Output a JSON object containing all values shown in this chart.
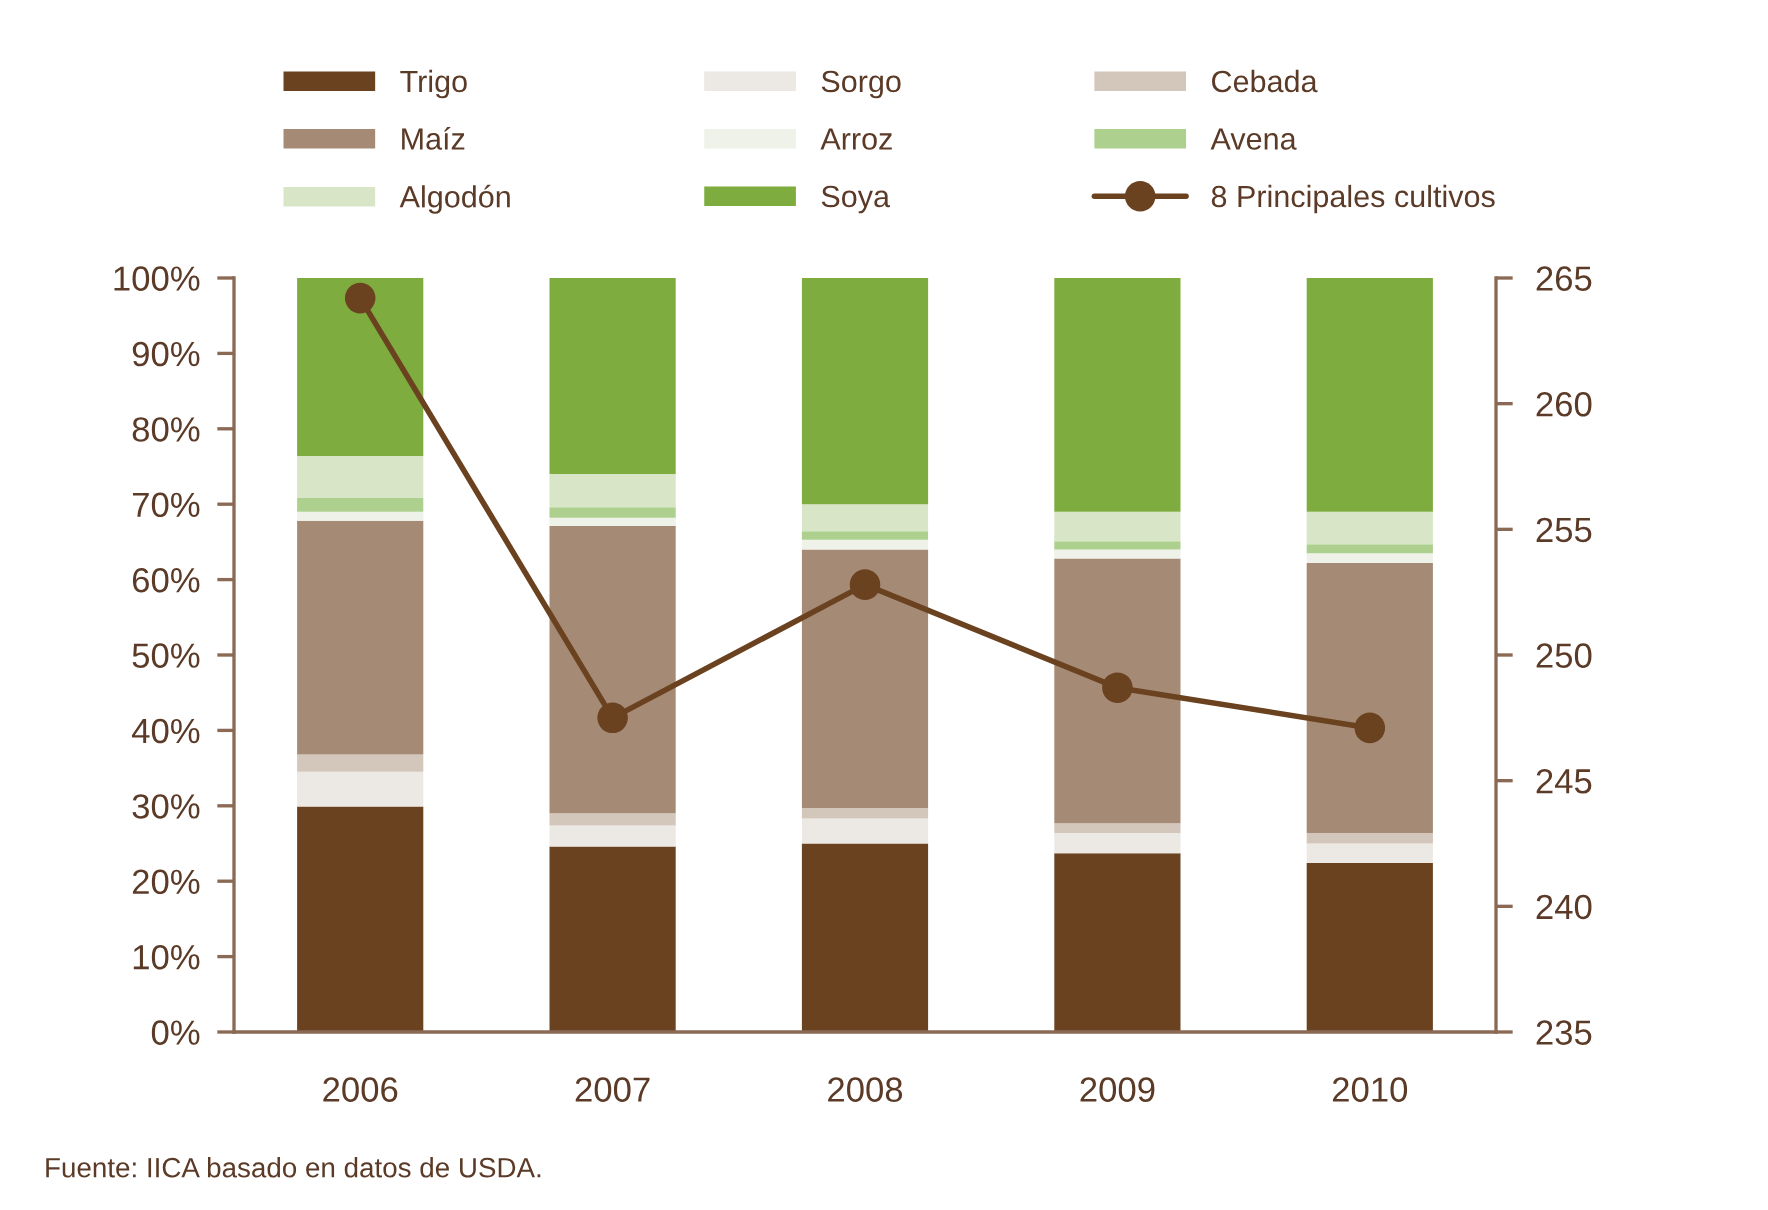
{
  "chart_data": {
    "type": "bar",
    "stacked": true,
    "categories": [
      "2006",
      "2007",
      "2008",
      "2009",
      "2010"
    ],
    "series": [
      {
        "name": "Trigo",
        "color": "#6b4220",
        "values": [
          29.9,
          24.6,
          25.0,
          23.7,
          22.4
        ]
      },
      {
        "name": "Sorgo",
        "color": "#ece8e3",
        "values": [
          4.6,
          2.8,
          3.3,
          2.7,
          2.6
        ]
      },
      {
        "name": "Cebada",
        "color": "#d3c6ba",
        "values": [
          2.3,
          1.6,
          1.4,
          1.3,
          1.4
        ]
      },
      {
        "name": "Maíz",
        "color": "#a58b76",
        "values": [
          31.0,
          38.1,
          34.3,
          35.1,
          35.8
        ]
      },
      {
        "name": "Arroz",
        "color": "#eef2e8",
        "values": [
          1.2,
          1.1,
          1.3,
          1.2,
          1.3
        ]
      },
      {
        "name": "Avena",
        "color": "#add08e",
        "values": [
          1.9,
          1.4,
          1.1,
          1.1,
          1.2
        ]
      },
      {
        "name": "Algodón",
        "color": "#d8e6c7",
        "values": [
          5.5,
          4.4,
          3.6,
          3.9,
          4.3
        ]
      },
      {
        "name": "Soya",
        "color": "#7fac3f",
        "values": [
          23.6,
          26.0,
          30.0,
          31.0,
          31.0
        ]
      },
      {
        "name": "8 Principales cultivos",
        "type": "line",
        "axis": "y2",
        "color": "#6b4220",
        "marker": "circle",
        "line_style": "solid",
        "values": [
          264.2,
          247.5,
          252.8,
          248.7,
          247.1
        ]
      }
    ],
    "ylim": [
      0,
      100
    ],
    "yticks": [
      {
        "value": 0,
        "label": "0%"
      },
      {
        "value": 10,
        "label": "10%"
      },
      {
        "value": 20,
        "label": "20%"
      },
      {
        "value": 30,
        "label": "30%"
      },
      {
        "value": 40,
        "label": "40%"
      },
      {
        "value": 50,
        "label": "50%"
      },
      {
        "value": 60,
        "label": "60%"
      },
      {
        "value": 70,
        "label": "70%"
      },
      {
        "value": 80,
        "label": "80%"
      },
      {
        "value": 90,
        "label": "90%"
      },
      {
        "value": 100,
        "label": "100%"
      }
    ],
    "y2lim": [
      235,
      265
    ],
    "y2ticks": [
      235,
      240,
      245,
      250,
      255,
      260,
      265
    ],
    "legend": "top",
    "grid": false,
    "annotations": [
      "Fuente: IICA basado en datos de USDA."
    ]
  }
}
